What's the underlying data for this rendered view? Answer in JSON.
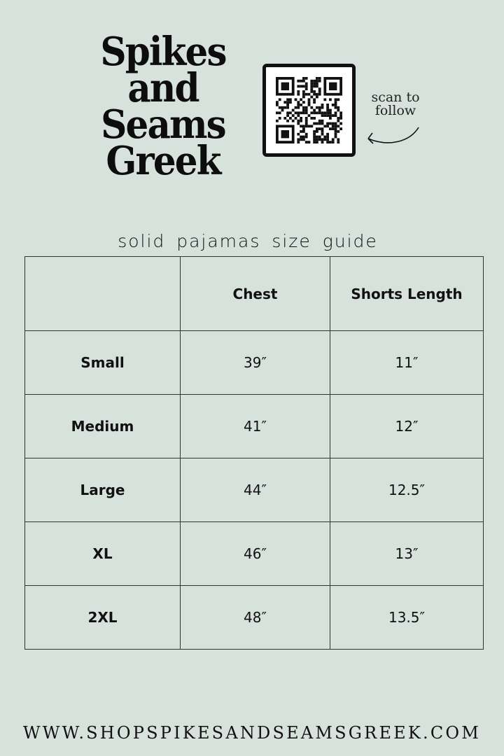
{
  "brand": {
    "lines": [
      "Spikes",
      "and",
      "Seams",
      "Greek"
    ]
  },
  "qr": {
    "caption_line1": "scan to",
    "caption_line2": "follow",
    "icon": "qr-code-icon",
    "arrow_icon": "curved-arrow-icon"
  },
  "title": "solid pajamas size guide",
  "table": {
    "headers": [
      "",
      "Chest",
      "Shorts Length"
    ],
    "rows": [
      [
        "Small",
        "39″",
        "11″"
      ],
      [
        "Medium",
        "41″",
        "12″"
      ],
      [
        "Large",
        "44″",
        "12.5″"
      ],
      [
        "XL",
        "46″",
        "13″"
      ],
      [
        "2XL",
        "48″",
        "13.5″"
      ]
    ]
  },
  "footer": "WWW.SHOPSPIKESANDSEAMSGREEK.COM",
  "colors": {
    "background": "#d8e2dd",
    "text": "#111111"
  }
}
